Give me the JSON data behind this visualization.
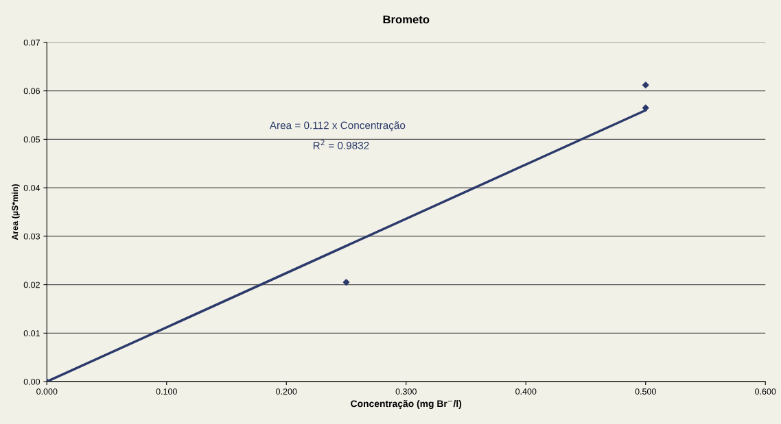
{
  "chart_data": {
    "type": "scatter",
    "title": "Brometo",
    "xlabel": "Concentração (mg Br$^{−}$/l)",
    "ylabel": "Area (µS*min)",
    "series": [
      {
        "color": "#2b3a6b",
        "x": [
          0.0,
          0.25,
          0.5,
          0.5
        ],
        "values": [
          0.0,
          0.0205,
          0.0612,
          0.0565
        ]
      },
      {
        "type": "line",
        "marker": "none",
        "color": "#2b3a6b",
        "x": [
          0.0,
          0.5
        ],
        "values": [
          0.0,
          0.056
        ]
      }
    ],
    "xlim": [
      0,
      0.6
    ],
    "ylim": [
      0,
      0.07
    ],
    "xticks": [
      {
        "value": 0,
        "label": "0.000"
      },
      {
        "value": 0.1,
        "label": "0.100"
      },
      {
        "value": 0.2,
        "label": "0.200"
      },
      {
        "value": 0.3,
        "label": "0.300"
      },
      {
        "value": 0.4,
        "label": "0.400"
      },
      {
        "value": 0.5,
        "label": "0.500"
      },
      {
        "value": 0.6,
        "label": "0.600"
      }
    ],
    "yticks": [
      {
        "value": 0,
        "label": "0.00"
      },
      {
        "value": 0.01,
        "label": "0.01"
      },
      {
        "value": 0.02,
        "label": "0.02"
      },
      {
        "value": 0.03,
        "label": "0.03"
      },
      {
        "value": 0.04,
        "label": "0.04"
      },
      {
        "value": 0.05,
        "label": "0.05"
      },
      {
        "value": 0.06,
        "label": "0.06"
      },
      {
        "value": 0.07,
        "label": "0.07"
      }
    ],
    "grid": "y",
    "marker": "diamond",
    "annotations": [
      "Area = 0.112 x Concentração",
      "R$^{2}$ = 0.9832"
    ]
  }
}
